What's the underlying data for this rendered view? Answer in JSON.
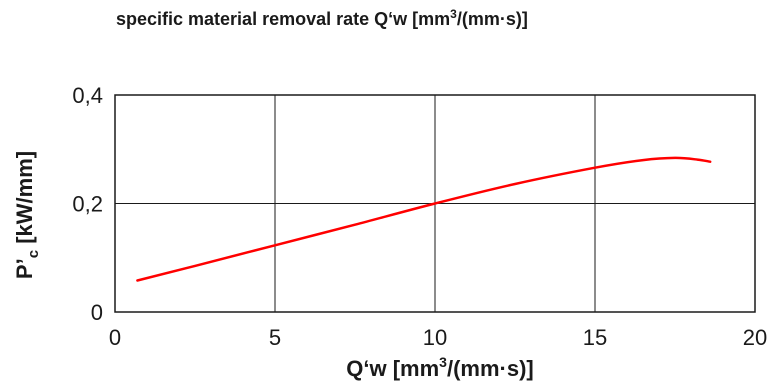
{
  "chart_data": {
    "type": "line",
    "title": {
      "main": "specific material removal rate Q‘w [mm",
      "sup": "3",
      "tail": "/(mm·s)]"
    },
    "xlabel": {
      "main": "Q‘w [mm",
      "sup": "3",
      "tail": "/(mm·s)]"
    },
    "ylabel": {
      "main": "P’",
      "sub": "c",
      "tail": " [kW/mm]"
    },
    "xlim": [
      0,
      20
    ],
    "ylim": [
      0,
      0.4
    ],
    "x_ticks": [
      {
        "value": 0,
        "label": "0"
      },
      {
        "value": 5,
        "label": "5"
      },
      {
        "value": 10,
        "label": "10"
      },
      {
        "value": 15,
        "label": "15"
      },
      {
        "value": 20,
        "label": "20"
      }
    ],
    "y_ticks": [
      {
        "value": 0,
        "label": "0"
      },
      {
        "value": 0.2,
        "label": "0,2"
      },
      {
        "value": 0.4,
        "label": "0,4"
      }
    ],
    "grid": true,
    "series": [
      {
        "color": "#ff0000",
        "x": [
          0.7,
          2.5,
          5,
          7.5,
          10,
          12.5,
          15,
          16.5,
          17.5,
          18.2,
          18.6
        ],
        "y": [
          0.058,
          0.085,
          0.123,
          0.161,
          0.2,
          0.236,
          0.266,
          0.28,
          0.284,
          0.281,
          0.277
        ]
      }
    ]
  }
}
